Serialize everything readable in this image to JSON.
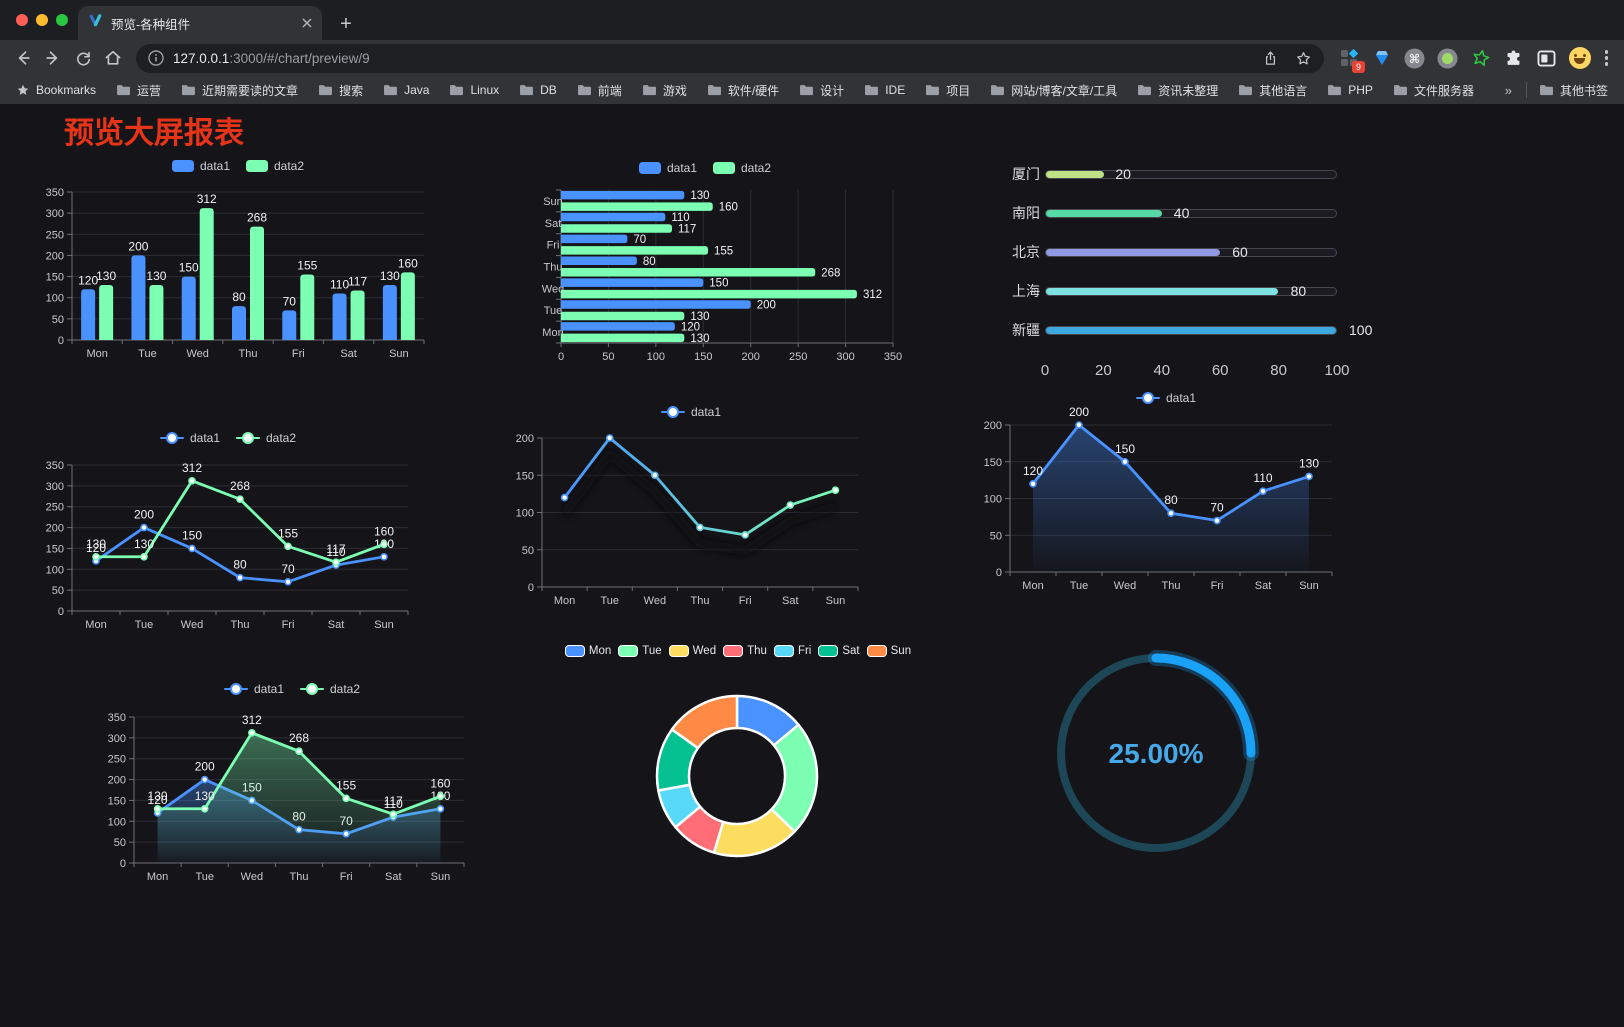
{
  "browser": {
    "tab_title": "预览-各种组件",
    "new_tab_label": "+",
    "url_host": "127.0.0.1",
    "url_rest": ":3000/#/chart/preview/9",
    "extension_badge": "9",
    "bookmarks_bar": {
      "root_label": "Bookmarks",
      "folders": [
        "运营",
        "近期需要读的文章",
        "搜索",
        "Java",
        "Linux",
        "DB",
        "前端",
        "游戏",
        "软件/硬件",
        "设计",
        "IDE",
        "项目",
        "网站/博客/文章/工具",
        "资讯未整理",
        "其他语言",
        "PHP",
        "文件服务器"
      ],
      "overflow_chevron": "»",
      "other_bookmarks_label": "其他书签"
    }
  },
  "page": {
    "title": "预览大屏报表",
    "title_color": "#e73418",
    "background": "#141419"
  },
  "chart_data": [
    {
      "id": "bar-vertical",
      "type": "bar",
      "categories": [
        "Mon",
        "Tue",
        "Wed",
        "Thu",
        "Fri",
        "Sat",
        "Sun"
      ],
      "series": [
        {
          "name": "data1",
          "color": "#4992ff",
          "values": [
            120,
            200,
            150,
            80,
            70,
            110,
            130
          ]
        },
        {
          "name": "data2",
          "color": "#7cffb2",
          "values": [
            130,
            130,
            312,
            268,
            155,
            117,
            160
          ]
        }
      ],
      "ylim": [
        0,
        350
      ],
      "ystep": 50,
      "legend_position": "top",
      "grid": true,
      "value_labels": true
    },
    {
      "id": "bar-horizontal",
      "type": "bar",
      "orientation": "horizontal",
      "categories_top_to_bottom": [
        "Sun",
        "Sat",
        "Fri",
        "Thu",
        "Wed",
        "Tue",
        "Mon"
      ],
      "series": [
        {
          "name": "data1",
          "color": "#4992ff",
          "values_mon_to_sun": [
            120,
            200,
            150,
            80,
            70,
            110,
            130
          ]
        },
        {
          "name": "data2",
          "color": "#7cffb2",
          "values_mon_to_sun": [
            130,
            130,
            312,
            268,
            155,
            117,
            160
          ]
        }
      ],
      "xlim": [
        0,
        350
      ],
      "xstep": 50,
      "legend_position": "top",
      "grid": true,
      "value_labels": true
    },
    {
      "id": "progress-bars",
      "type": "bar",
      "orientation": "horizontal",
      "xlim": [
        0,
        100
      ],
      "xticks": [
        0,
        20,
        40,
        60,
        80,
        100
      ],
      "items": [
        {
          "label": "厦门",
          "value": 20,
          "color": "#c0e287"
        },
        {
          "label": "南阳",
          "value": 40,
          "color": "#55d9a5"
        },
        {
          "label": "北京",
          "value": 60,
          "color": "#9199e2"
        },
        {
          "label": "上海",
          "value": 80,
          "color": "#7fe2e2"
        },
        {
          "label": "新疆",
          "value": 100,
          "color": "#3ea7e0"
        }
      ]
    },
    {
      "id": "line-two-series",
      "type": "line",
      "categories": [
        "Mon",
        "Tue",
        "Wed",
        "Thu",
        "Fri",
        "Sat",
        "Sun"
      ],
      "series": [
        {
          "name": "data1",
          "color": "#4992ff",
          "values": [
            120,
            200,
            150,
            80,
            70,
            110,
            130
          ]
        },
        {
          "name": "data2",
          "color": "#7cffb2",
          "values": [
            130,
            130,
            312,
            268,
            155,
            117,
            160
          ]
        }
      ],
      "ylim": [
        0,
        350
      ],
      "ystep": 50,
      "legend_position": "top",
      "value_labels": true
    },
    {
      "id": "line-gradient",
      "type": "line",
      "categories": [
        "Mon",
        "Tue",
        "Wed",
        "Thu",
        "Fri",
        "Sat",
        "Sun"
      ],
      "series": [
        {
          "name": "data1",
          "color_start": "#4992ff",
          "color_end": "#7cffb2",
          "values": [
            120,
            200,
            150,
            80,
            70,
            110,
            130
          ]
        }
      ],
      "ylim": [
        0,
        200
      ],
      "ystep": 50,
      "legend_position": "top",
      "value_labels": false,
      "shadow": true
    },
    {
      "id": "area-single",
      "type": "area",
      "categories": [
        "Mon",
        "Tue",
        "Wed",
        "Thu",
        "Fri",
        "Sat",
        "Sun"
      ],
      "series": [
        {
          "name": "data1",
          "color": "#4992ff",
          "values": [
            120,
            200,
            150,
            80,
            70,
            110,
            130
          ]
        }
      ],
      "ylim": [
        0,
        200
      ],
      "ystep": 50,
      "legend_position": "top",
      "value_labels": true
    },
    {
      "id": "area-two-series",
      "type": "area",
      "categories": [
        "Mon",
        "Tue",
        "Wed",
        "Thu",
        "Fri",
        "Sat",
        "Sun"
      ],
      "series": [
        {
          "name": "data1",
          "color": "#4992ff",
          "values": [
            120,
            200,
            150,
            80,
            70,
            110,
            130
          ]
        },
        {
          "name": "data2",
          "color": "#7cffb2",
          "values": [
            130,
            130,
            312,
            268,
            155,
            117,
            160
          ]
        }
      ],
      "ylim": [
        0,
        350
      ],
      "ystep": 50,
      "legend_position": "top",
      "value_labels": true
    },
    {
      "id": "donut",
      "type": "pie",
      "inner_radius_ratio": 0.6,
      "border_color": "#ffffff",
      "legend_position": "top",
      "slices": [
        {
          "label": "Mon",
          "value": 120,
          "color": "#4992ff"
        },
        {
          "label": "Tue",
          "value": 200,
          "color": "#7cffb2"
        },
        {
          "label": "Wed",
          "value": 150,
          "color": "#fddd60"
        },
        {
          "label": "Thu",
          "value": 80,
          "color": "#ff6e76"
        },
        {
          "label": "Fri",
          "value": 70,
          "color": "#58d9f9"
        },
        {
          "label": "Sat",
          "value": 110,
          "color": "#05c091"
        },
        {
          "label": "Sun",
          "value": 130,
          "color": "#ff8a45"
        }
      ]
    },
    {
      "id": "gauge",
      "type": "gauge",
      "value_percent": 25,
      "label": "25.00%",
      "progress_color": "#1aa1f8",
      "track_color": "#1d4756",
      "text_color": "#45a9e9"
    }
  ]
}
